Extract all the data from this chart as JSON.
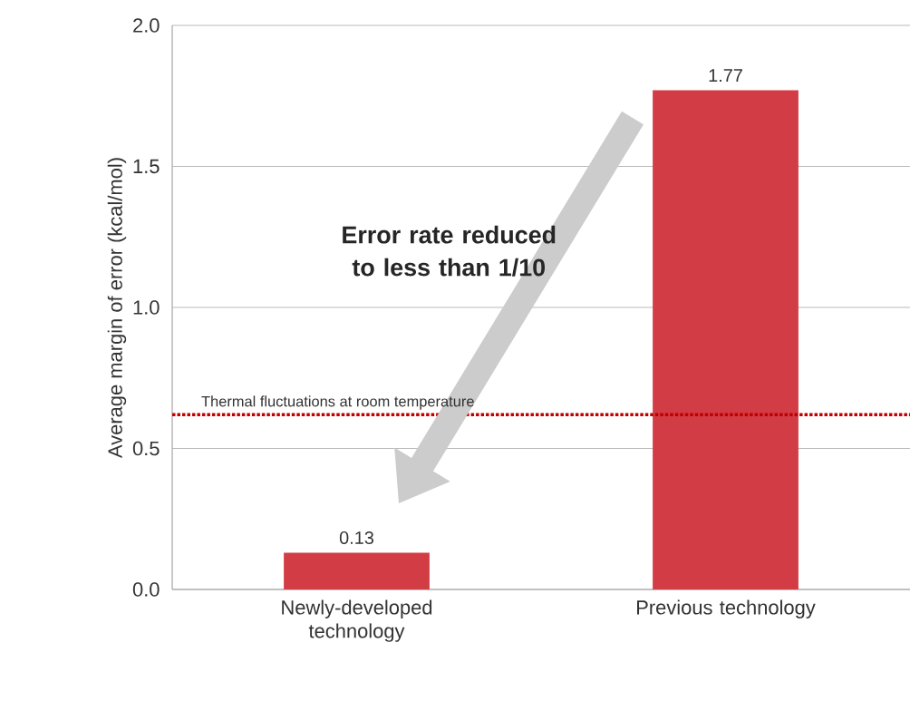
{
  "chart_data": {
    "type": "bar",
    "ylabel": "Average margin of error (kcal/mol)",
    "categories": [
      "Newly-developed technology",
      "Previous technology"
    ],
    "values": [
      0.13,
      1.77
    ],
    "color": "#d23c44",
    "ylim": [
      0,
      2.0
    ],
    "yticks": [
      {
        "value": 0,
        "label": "0.0"
      },
      {
        "value": 0.5,
        "label": "0.5"
      },
      {
        "value": 1.0,
        "label": "1.0"
      },
      {
        "value": 1.5,
        "label": "1.5"
      },
      {
        "value": 2.0,
        "label": "2.0"
      }
    ],
    "grid": "y",
    "data_labels": true,
    "ref_lines": [
      {
        "axis": "y",
        "value": 0.62,
        "label": "Thermal fluctuations at room temperature",
        "color": "#c00000",
        "line_style": "dotted"
      }
    ],
    "annotations": [
      "Error rate reduced to less than 1/10"
    ]
  }
}
